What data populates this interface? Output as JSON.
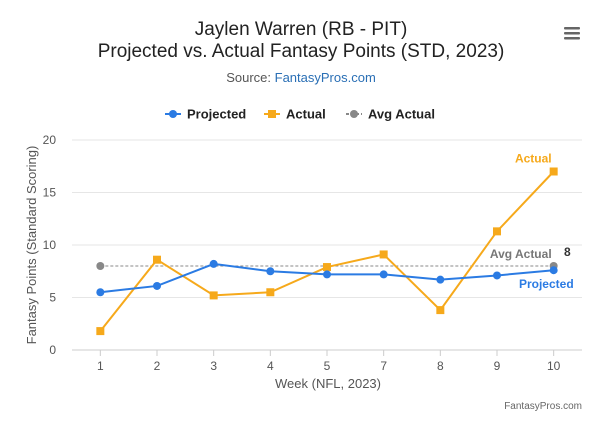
{
  "menu_icon": "hamburger-menu-icon",
  "chart_data": {
    "type": "line",
    "title_line1": "Jaylen Warren (RB - PIT)",
    "title_line2": "Projected vs. Actual Fantasy Points (STD, 2023)",
    "source_label": "Source: ",
    "source_link": "FantasyPros.com",
    "xlabel": "Week (NFL, 2023)",
    "ylabel": "Fantasy Points (Standard Scoring)",
    "categories": [
      "1",
      "2",
      "3",
      "4",
      "5",
      "7",
      "8",
      "9",
      "10"
    ],
    "ylim": [
      0,
      20
    ],
    "yticks": [
      0,
      5,
      10,
      15,
      20
    ],
    "grid": true,
    "legend_position": "top-center",
    "series": [
      {
        "name": "Projected",
        "color": "#2b7be3",
        "marker": "circle",
        "values": [
          5.5,
          6.1,
          8.2,
          7.5,
          7.2,
          7.2,
          6.7,
          7.1,
          7.6
        ]
      },
      {
        "name": "Actual",
        "color": "#f6a91b",
        "marker": "square",
        "values": [
          1.8,
          8.6,
          5.2,
          5.5,
          7.9,
          9.1,
          3.8,
          11.3,
          17.0
        ]
      },
      {
        "name": "Avg Actual",
        "color": "#888888",
        "marker": "circle",
        "dashed": true,
        "values": [
          8.0,
          8.0,
          8.0,
          8.0,
          8.0,
          8.0,
          8.0,
          8.0,
          8.0
        ]
      }
    ],
    "annotations": [
      {
        "text": "Actual",
        "color": "#f6a91b"
      },
      {
        "text": "Avg Actual",
        "color": "#777777"
      },
      {
        "text": "8",
        "color": "#333333"
      },
      {
        "text": "Projected",
        "color": "#2b7be3"
      }
    ],
    "credit": "FantasyPros.com"
  }
}
